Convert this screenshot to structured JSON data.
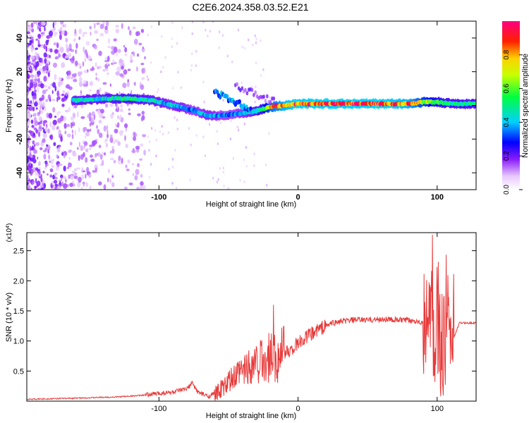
{
  "title": "C2E6.2024.358.03.52.E21",
  "chart_data": [
    {
      "type": "heatmap",
      "xlabel": "Height of straight line (km)",
      "ylabel": "Frequency (Hz)",
      "xlim": [
        -195,
        128
      ],
      "ylim": [
        -50,
        50
      ],
      "x_ticks": [
        -100,
        0,
        100
      ],
      "y_ticks": [
        -40,
        -20,
        0,
        20,
        40
      ],
      "colorbar": {
        "label": "Normalized spectral amplitude",
        "range": [
          0,
          1
        ],
        "ticks": [
          "0.0",
          "0.2",
          "0.4",
          "0.6",
          "0.8"
        ],
        "tick_values": [
          0,
          0.2,
          0.4,
          0.6,
          0.8
        ]
      },
      "ridge": {
        "x": [
          -160,
          -140,
          -120,
          -105,
          -95,
          -85,
          -75,
          -65,
          -55,
          -45,
          -35,
          -25,
          -20,
          -10,
          0,
          20,
          40,
          60,
          80,
          90,
          100,
          110,
          128
        ],
        "y": [
          3,
          4,
          4,
          3,
          1,
          -1,
          -3,
          -6,
          -6,
          -5,
          -4,
          -2,
          -1,
          0,
          1,
          1,
          1,
          1,
          1,
          2,
          2,
          1,
          1
        ],
        "amplitude": [
          0.45,
          0.45,
          0.5,
          0.45,
          0.4,
          0.4,
          0.35,
          0.4,
          0.35,
          0.35,
          0.4,
          0.55,
          0.75,
          0.85,
          0.9,
          0.9,
          0.9,
          0.9,
          0.85,
          0.7,
          0.55,
          0.5,
          0.5
        ]
      }
    },
    {
      "type": "line",
      "xlabel": "Height of straight line (km)",
      "ylabel": "SNR (10 * v/v)",
      "y_multiplier": "(x10^4)",
      "xlim": [
        -195,
        128
      ],
      "ylim": [
        0,
        2.8
      ],
      "x_ticks": [
        -100,
        0,
        100
      ],
      "y_ticks": [
        "0.5",
        "1.0",
        "1.5",
        "2.0",
        "2.5"
      ],
      "y_tick_values": [
        0.5,
        1.0,
        1.5,
        2.0,
        2.5
      ],
      "color": "#e83a3a",
      "series": [
        {
          "x": [
            -195,
            -160,
            -130,
            -110,
            -100,
            -90,
            -80,
            -76,
            -72,
            -65,
            -60,
            -55,
            -50,
            -45,
            -40,
            -35,
            -30,
            -25,
            -20,
            -15,
            -10,
            -5,
            0,
            5,
            10,
            15,
            20,
            25,
            30,
            40,
            50,
            60,
            70,
            80,
            88,
            92,
            96,
            100,
            104,
            108,
            112,
            116,
            128
          ],
          "y": [
            0.03,
            0.05,
            0.07,
            0.1,
            0.13,
            0.15,
            0.2,
            0.3,
            0.15,
            0.08,
            0.12,
            0.2,
            0.3,
            0.4,
            0.5,
            0.6,
            0.65,
            0.7,
            0.72,
            0.76,
            0.8,
            0.85,
            0.95,
            1.05,
            1.12,
            1.2,
            1.25,
            1.3,
            1.32,
            1.35,
            1.35,
            1.36,
            1.35,
            1.34,
            1.33,
            1.2,
            1.3,
            1.1,
            0.9,
            1.0,
            1.05,
            1.3,
            1.3
          ]
        }
      ]
    }
  ]
}
